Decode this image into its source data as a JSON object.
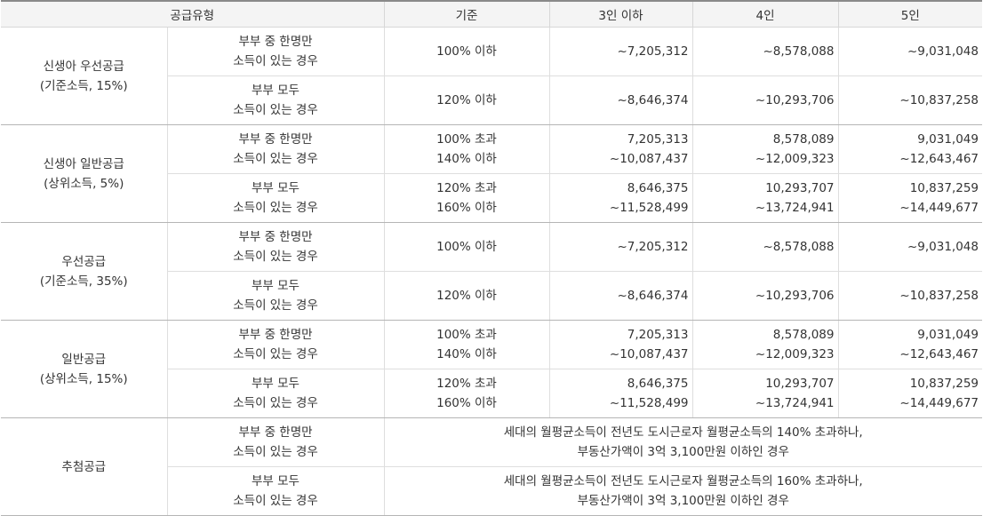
{
  "header": [
    "공급유형",
    "기준",
    "3인 이하",
    "4인",
    "5인"
  ],
  "groups": [
    {
      "name": [
        "신생아 우선공급",
        "(기준소득, 15%)"
      ],
      "rows": [
        {
          "type": [
            "부부 중 한명만",
            "소득이 있는 경우"
          ],
          "criteria": [
            "100% 이하"
          ],
          "c3": [
            "~7,205,312"
          ],
          "c4": [
            "~8,578,088"
          ],
          "c5": [
            "~9,031,048"
          ]
        },
        {
          "type": [
            "부부 모두",
            "소득이 있는 경우"
          ],
          "criteria": [
            "120% 이하"
          ],
          "c3": [
            "~8,646,374"
          ],
          "c4": [
            "~10,293,706"
          ],
          "c5": [
            "~10,837,258"
          ]
        }
      ]
    },
    {
      "name": [
        "신생아 일반공급",
        "(상위소득, 5%)"
      ],
      "rows": [
        {
          "type": [
            "부부 중 한명만",
            "소득이 있는 경우"
          ],
          "criteria": [
            "100% 초과",
            "140% 이하"
          ],
          "c3": [
            "7,205,313",
            "~10,087,437"
          ],
          "c4": [
            "8,578,089",
            "~12,009,323"
          ],
          "c5": [
            "9,031,049",
            "~12,643,467"
          ]
        },
        {
          "type": [
            "부부 모두",
            "소득이 있는 경우"
          ],
          "criteria": [
            "120% 초과",
            "160% 이하"
          ],
          "c3": [
            "8,646,375",
            "~11,528,499"
          ],
          "c4": [
            "10,293,707",
            "~13,724,941"
          ],
          "c5": [
            "10,837,259",
            "~14,449,677"
          ]
        }
      ]
    },
    {
      "name": [
        "우선공급",
        "(기준소득, 35%)"
      ],
      "rows": [
        {
          "type": [
            "부부 중 한명만",
            "소득이 있는 경우"
          ],
          "criteria": [
            "100% 이하"
          ],
          "c3": [
            "~7,205,312"
          ],
          "c4": [
            "~8,578,088"
          ],
          "c5": [
            "~9,031,048"
          ]
        },
        {
          "type": [
            "부부 모두",
            "소득이 있는 경우"
          ],
          "criteria": [
            "120% 이하"
          ],
          "c3": [
            "~8,646,374"
          ],
          "c4": [
            "~10,293,706"
          ],
          "c5": [
            "~10,837,258"
          ]
        }
      ]
    },
    {
      "name": [
        "일반공급",
        "(상위소득, 15%)"
      ],
      "rows": [
        {
          "type": [
            "부부 중 한명만",
            "소득이 있는 경우"
          ],
          "criteria": [
            "100% 초과",
            "140% 이하"
          ],
          "c3": [
            "7,205,313",
            "~10,087,437"
          ],
          "c4": [
            "8,578,089",
            "~12,009,323"
          ],
          "c5": [
            "9,031,049",
            "~12,643,467"
          ]
        },
        {
          "type": [
            "부부 모두",
            "소득이 있는 경우"
          ],
          "criteria": [
            "120% 초과",
            "160% 이하"
          ],
          "c3": [
            "8,646,375",
            "~11,528,499"
          ],
          "c4": [
            "10,293,707",
            "~13,724,941"
          ],
          "c5": [
            "10,837,259",
            "~14,449,677"
          ]
        }
      ]
    },
    {
      "name": [
        "추첨공급"
      ],
      "rows": [
        {
          "type": [
            "부부 중 한명만",
            "소득이 있는 경우"
          ],
          "note": [
            "세대의 월평균소득이 전년도 도시근로자 월평균소득의 140% 초과하나,",
            "부동산가액이 3억 3,100만원 이하인 경우"
          ]
        },
        {
          "type": [
            "부부 모두",
            "소득이 있는 경우"
          ],
          "note": [
            "세대의 월평균소득이 전년도 도시근로자 월평균소득의 160% 초과하나,",
            "부동산가액이 3억 3,100만원 이하인 경우"
          ]
        }
      ]
    }
  ]
}
